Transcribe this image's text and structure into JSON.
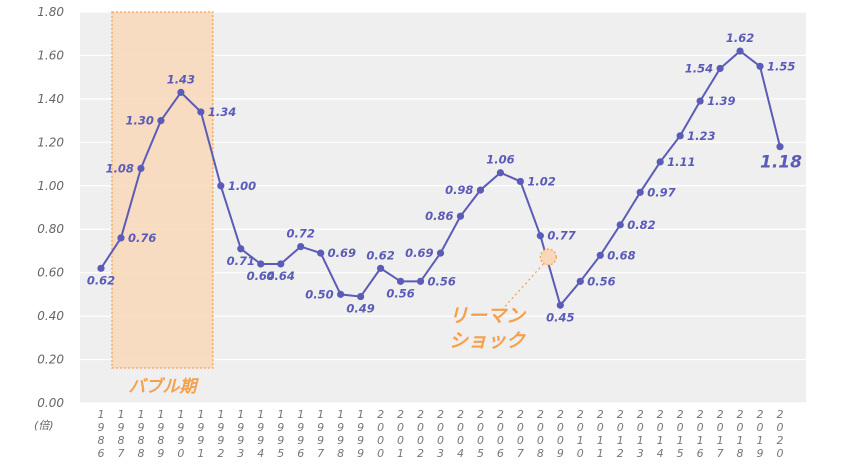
{
  "chart_data": {
    "type": "line",
    "unit_label": "(倍)",
    "ylim": [
      0,
      1.8
    ],
    "yticks": [
      "0.00",
      "0.20",
      "0.40",
      "0.60",
      "0.80",
      "1.00",
      "1.20",
      "1.40",
      "1.60",
      "1.80"
    ],
    "grid": true,
    "categories": [
      "1986",
      "1987",
      "1988",
      "1989",
      "1990",
      "1991",
      "1992",
      "1993",
      "1994",
      "1995",
      "1996",
      "1997",
      "1998",
      "1999",
      "2000",
      "2001",
      "2002",
      "2003",
      "2004",
      "2005",
      "2006",
      "2007",
      "2008",
      "2009",
      "2010",
      "2011",
      "2012",
      "2013",
      "2014",
      "2015",
      "2016",
      "2017",
      "2018",
      "2019",
      "2020"
    ],
    "series": [
      {
        "values": [
          0.62,
          0.76,
          1.08,
          1.3,
          1.43,
          1.34,
          1.0,
          0.71,
          0.64,
          0.64,
          0.72,
          0.69,
          0.5,
          0.49,
          0.62,
          0.56,
          0.56,
          0.69,
          0.86,
          0.98,
          1.06,
          1.02,
          0.77,
          0.45,
          0.56,
          0.68,
          0.82,
          0.97,
          1.11,
          1.23,
          1.39,
          1.54,
          1.62,
          1.55,
          1.18
        ],
        "labels": [
          "0.62",
          "0.76",
          "1.08",
          "1.30",
          "1.43",
          "1.34",
          "1.00",
          "0.71",
          "0.64",
          "0.64",
          "0.72",
          "0.69",
          "0.50",
          "0.49",
          "0.62",
          "0.56",
          "0.56",
          "0.69",
          "0.86",
          "0.98",
          "1.06",
          "1.02",
          "0.77",
          "0.45",
          "0.56",
          "0.68",
          "0.82",
          "0.97",
          "1.11",
          "1.23",
          "1.39",
          "1.54",
          "1.62",
          "1.55",
          "1.18"
        ]
      }
    ],
    "annotations": [
      {
        "text": "バブル期",
        "from": "1987",
        "to": "1991"
      },
      {
        "text_lines": [
          "リーマン",
          "ショック"
        ],
        "at": "2008"
      }
    ],
    "colors": {
      "line": "#5b5bb8",
      "label": "#5b5bb8",
      "bubble_fill": "#f8d8b8",
      "bubble_border": "#f5a04c",
      "annotation": "#f5a04c",
      "plot_bg": "#efefef",
      "grid": "#ffffff"
    }
  }
}
